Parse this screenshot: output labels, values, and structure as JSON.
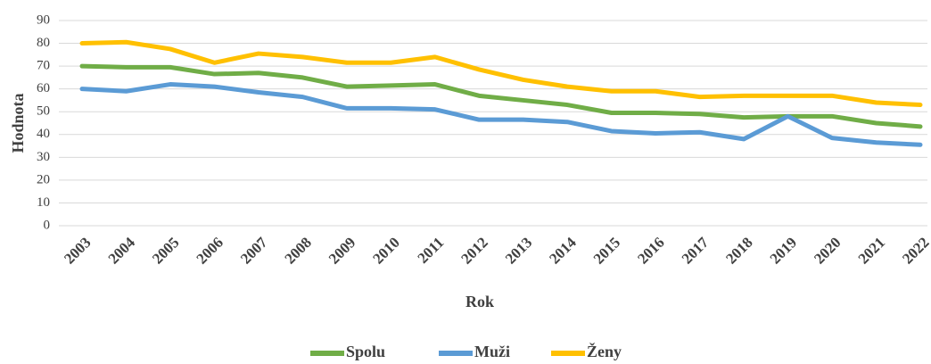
{
  "chart_data": {
    "type": "line",
    "x_label": "Rok",
    "y_label": "Hodnota",
    "categories": [
      "2003",
      "2004",
      "2005",
      "2006",
      "2007",
      "2008",
      "2009",
      "2010",
      "2011",
      "2012",
      "2013",
      "2014",
      "2015",
      "2016",
      "2017",
      "2018",
      "2019",
      "2020",
      "2021",
      "2022"
    ],
    "series": [
      {
        "name": "Spolu",
        "color": "#70ad47",
        "values": [
          70,
          69.5,
          69.5,
          66.5,
          67,
          65,
          61,
          61.5,
          62,
          57,
          55,
          53,
          49.5,
          49.5,
          49,
          47.5,
          48,
          48,
          45,
          43.5
        ]
      },
      {
        "name": "Muži",
        "color": "#5b9bd5",
        "values": [
          60,
          59,
          62,
          61,
          58.5,
          56.5,
          51.5,
          51.5,
          51,
          46.5,
          46.5,
          45.5,
          41.5,
          40.5,
          41,
          38,
          48,
          38.5,
          36.5,
          35.5
        ]
      },
      {
        "name": "Ženy",
        "color": "#ffc000",
        "values": [
          80,
          80.5,
          77.5,
          71.5,
          75.5,
          74,
          71.5,
          71.5,
          74,
          68.5,
          64,
          61,
          59,
          59,
          56.5,
          57,
          57,
          57,
          54,
          53
        ]
      }
    ],
    "ylim": [
      0,
      90
    ],
    "yticks": [
      0,
      10,
      20,
      30,
      40,
      50,
      60,
      70,
      80,
      90
    ],
    "grid": true,
    "legend": "bottom"
  }
}
